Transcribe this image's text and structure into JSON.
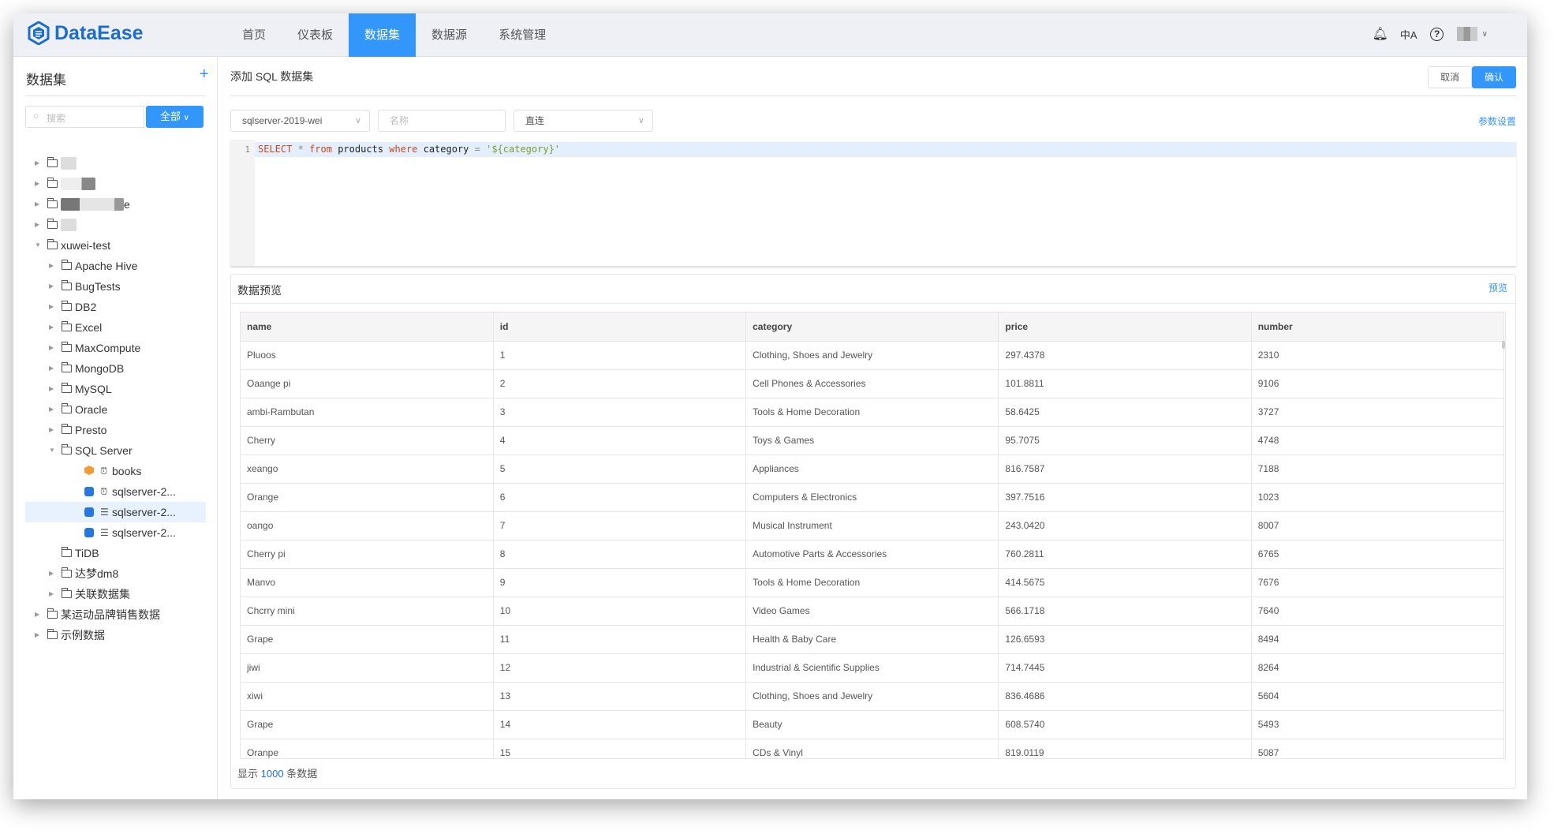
{
  "header": {
    "logo_text": "DataEase",
    "nav": [
      {
        "label": "首页",
        "active": false
      },
      {
        "label": "仪表板",
        "active": false
      },
      {
        "label": "数据集",
        "active": true
      },
      {
        "label": "数据源",
        "active": false
      },
      {
        "label": "系统管理",
        "active": false
      }
    ],
    "icons": [
      "bell-icon",
      "translate-icon",
      "help-icon"
    ]
  },
  "sidebar": {
    "title": "数据集",
    "add": "+",
    "search_placeholder": "搜索",
    "filter_label": "全部",
    "tree": [
      {
        "label": "",
        "level": 0,
        "type": "folder",
        "arrow": "right",
        "redacted": true
      },
      {
        "label": "",
        "level": 0,
        "type": "folder",
        "arrow": "right",
        "redacted": true
      },
      {
        "label": "e",
        "level": 0,
        "type": "folder",
        "arrow": "right",
        "redacted": true
      },
      {
        "label": "",
        "level": 0,
        "type": "folder",
        "arrow": "right",
        "redacted": true
      },
      {
        "label": "xuwei-test",
        "level": 0,
        "type": "folder",
        "arrow": "down"
      },
      {
        "label": "Apache Hive",
        "level": 1,
        "type": "folder",
        "arrow": "right"
      },
      {
        "label": "BugTests",
        "level": 1,
        "type": "folder",
        "arrow": "right"
      },
      {
        "label": "DB2",
        "level": 1,
        "type": "folder",
        "arrow": "right"
      },
      {
        "label": "Excel",
        "level": 1,
        "type": "folder",
        "arrow": "right"
      },
      {
        "label": "MaxCompute",
        "level": 1,
        "type": "folder",
        "arrow": "right"
      },
      {
        "label": "MongoDB",
        "level": 1,
        "type": "folder",
        "arrow": "right"
      },
      {
        "label": "MySQL",
        "level": 1,
        "type": "folder",
        "arrow": "right"
      },
      {
        "label": "Oracle",
        "level": 1,
        "type": "folder",
        "arrow": "right"
      },
      {
        "label": "Presto",
        "level": 1,
        "type": "folder",
        "arrow": "right"
      },
      {
        "label": "SQL Server",
        "level": 1,
        "type": "folder",
        "arrow": "down"
      },
      {
        "label": "books",
        "level": 2,
        "type": "excel",
        "mode": "clock"
      },
      {
        "label": "sqlserver-2...",
        "level": 2,
        "type": "db",
        "mode": "clock"
      },
      {
        "label": "sqlserver-2...",
        "level": 2,
        "type": "db",
        "mode": "direct",
        "selected": true
      },
      {
        "label": "sqlserver-2...",
        "level": 2,
        "type": "db",
        "mode": "direct"
      },
      {
        "label": "TiDB",
        "level": 1,
        "type": "folder",
        "arrow": "none"
      },
      {
        "label": "达梦dm8",
        "level": 1,
        "type": "folder",
        "arrow": "right"
      },
      {
        "label": "关联数据集",
        "level": 1,
        "type": "folder",
        "arrow": "right"
      },
      {
        "label": "某运动品牌销售数据",
        "level": 0,
        "type": "folder",
        "arrow": "right"
      },
      {
        "label": "示例数据",
        "level": 0,
        "type": "folder",
        "arrow": "right"
      }
    ]
  },
  "main": {
    "title": "添加 SQL 数据集",
    "cancel": "取消",
    "confirm": "确认",
    "datasource_value": "sqlserver-2019-wei",
    "name_placeholder": "名称",
    "mode_value": "直连",
    "param_settings": "参数设置",
    "sql": {
      "line_number": "1",
      "kw1": "SELECT",
      "star": "*",
      "kw2": "from",
      "table": "products",
      "kw3": "where",
      "col": "category",
      "eq": "=",
      "value": "'${category}'"
    },
    "preview": {
      "title": "数据预览",
      "preview_link": "预览",
      "columns": [
        "name",
        "id",
        "category",
        "price",
        "number"
      ],
      "rows": [
        [
          "Pluoos",
          "1",
          "Clothing, Shoes and Jewelry",
          "297.4378",
          "2310"
        ],
        [
          "Oaange pi",
          "2",
          "Cell Phones & Accessories",
          "101.8811",
          "9106"
        ],
        [
          "ambi-Rambutan",
          "3",
          "Tools & Home Decoration",
          "58.6425",
          "3727"
        ],
        [
          "Cherry",
          "4",
          "Toys & Games",
          "95.7075",
          "4748"
        ],
        [
          "xeango",
          "5",
          "Appliances",
          "816.7587",
          "7188"
        ],
        [
          "Orange",
          "6",
          "Computers & Electronics",
          "397.7516",
          "1023"
        ],
        [
          "oango",
          "7",
          "Musical Instrument",
          "243.0420",
          "8007"
        ],
        [
          "Cherry pi",
          "8",
          "Automotive Parts & Accessories",
          "760.2811",
          "6765"
        ],
        [
          "Manvo",
          "9",
          "Tools & Home Decoration",
          "414.5675",
          "7676"
        ],
        [
          "Chcrry mini",
          "10",
          "Video Games",
          "566.1718",
          "7640"
        ],
        [
          "Grape",
          "11",
          "Health & Baby Care",
          "126.6593",
          "8494"
        ],
        [
          "jiwi",
          "12",
          "Industrial & Scientific Supplies",
          "714.7445",
          "8264"
        ],
        [
          "xiwi",
          "13",
          "Clothing, Shoes and Jewelry",
          "836.4686",
          "5604"
        ],
        [
          "Grape",
          "14",
          "Beauty",
          "608.5740",
          "5493"
        ],
        [
          "Oranpe",
          "15",
          "CDs & Vinyl",
          "819.0119",
          "5087"
        ]
      ],
      "footer_prefix": "显示",
      "footer_count": "1000",
      "footer_suffix": "条数据"
    }
  },
  "colors": {
    "primary": "#3296fa",
    "header_bg": "#eef0f5",
    "logo": "#1c6dd0"
  }
}
